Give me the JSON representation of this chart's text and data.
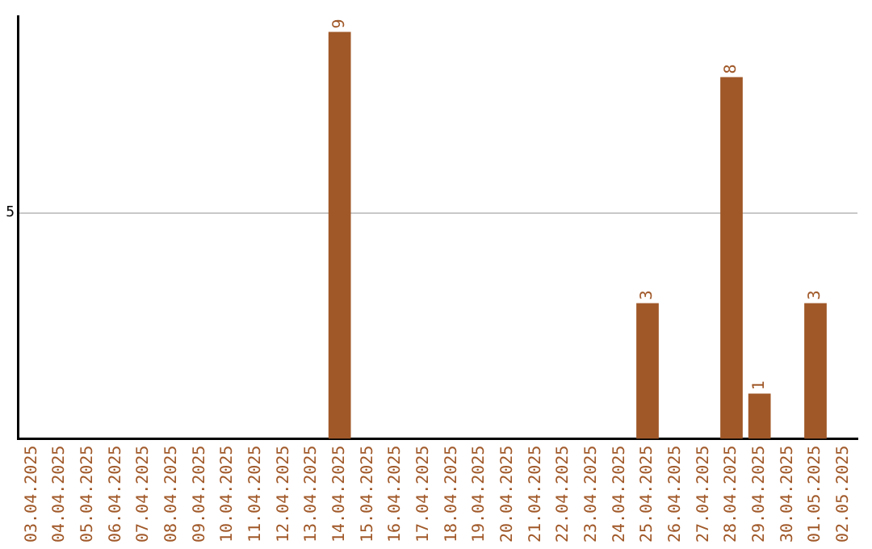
{
  "chart_data": {
    "type": "bar",
    "categories": [
      "03.04.2025",
      "04.04.2025",
      "05.04.2025",
      "06.04.2025",
      "07.04.2025",
      "08.04.2025",
      "09.04.2025",
      "10.04.2025",
      "11.04.2025",
      "12.04.2025",
      "13.04.2025",
      "14.04.2025",
      "15.04.2025",
      "16.04.2025",
      "17.04.2025",
      "18.04.2025",
      "19.04.2025",
      "20.04.2025",
      "21.04.2025",
      "22.04.2025",
      "23.04.2025",
      "24.04.2025",
      "25.04.2025",
      "26.04.2025",
      "27.04.2025",
      "28.04.2025",
      "29.04.2025",
      "30.04.2025",
      "01.05.2025",
      "02.05.2025"
    ],
    "values": [
      0,
      0,
      0,
      0,
      0,
      0,
      0,
      0,
      0,
      0,
      0,
      9,
      0,
      0,
      0,
      0,
      0,
      0,
      0,
      0,
      0,
      0,
      3,
      0,
      0,
      8,
      1,
      0,
      3,
      0
    ],
    "value_labels": [
      null,
      null,
      null,
      null,
      null,
      null,
      null,
      null,
      null,
      null,
      null,
      "9",
      null,
      null,
      null,
      null,
      null,
      null,
      null,
      null,
      null,
      null,
      "3",
      null,
      null,
      "8",
      "1",
      null,
      "3",
      null
    ],
    "color": "#a05828",
    "ylim": [
      0,
      9.35
    ],
    "yticks": [
      5
    ],
    "grid": "y"
  }
}
